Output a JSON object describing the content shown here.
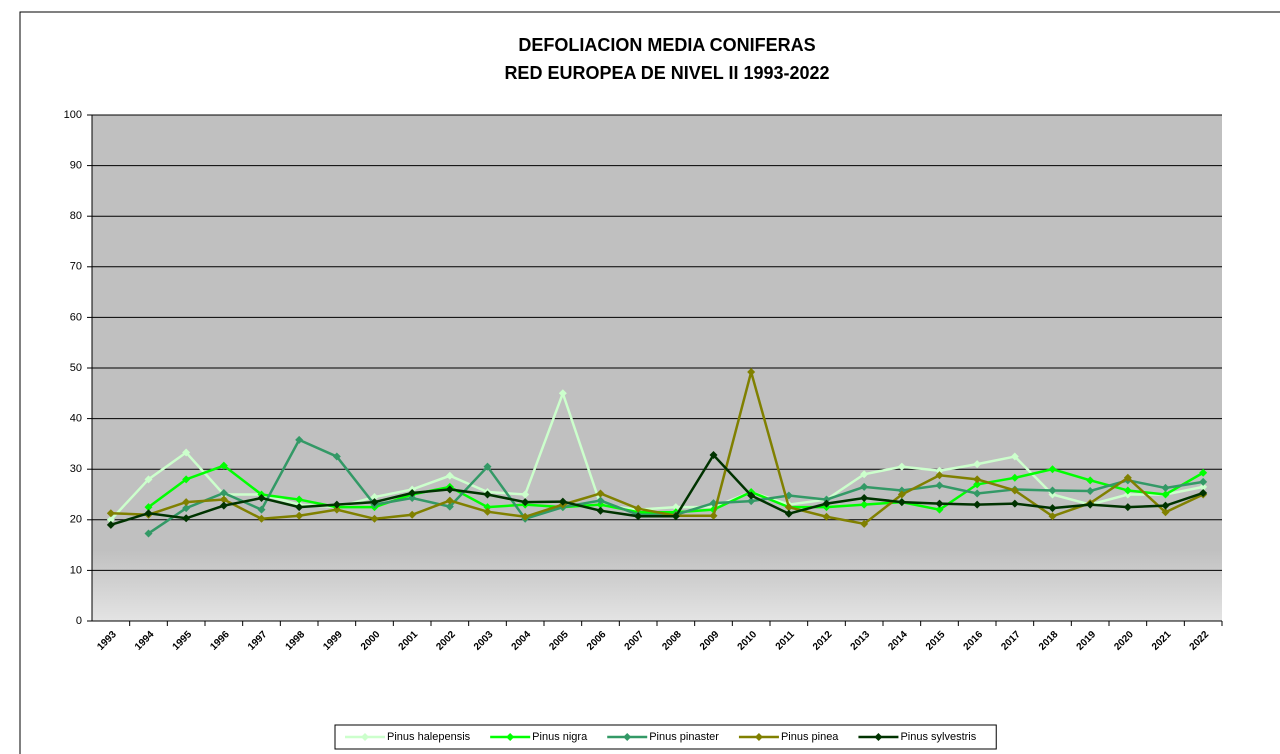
{
  "chart_data": {
    "type": "line",
    "title": [
      "DEFOLIACION MEDIA CONIFERAS",
      "RED EUROPEA DE NIVEL II 1993-2022"
    ],
    "categories": [
      "1993",
      "1994",
      "1995",
      "1996",
      "1997",
      "1998",
      "1999",
      "2000",
      "2001",
      "2002",
      "2003",
      "2004",
      "2005",
      "2006",
      "2007",
      "2008",
      "2009",
      "2010",
      "2011",
      "2012",
      "2013",
      "2014",
      "2015",
      "2016",
      "2017",
      "2018",
      "2019",
      "2020",
      "2021",
      "2022"
    ],
    "ylim": [
      0,
      100
    ],
    "yticks": [
      0,
      10,
      20,
      30,
      40,
      50,
      60,
      70,
      80,
      90,
      100
    ],
    "grid": true,
    "legend": "bottom",
    "series": [
      {
        "name": "Pinus halepensis",
        "color": "#ccffcc",
        "values": [
          20,
          28,
          33.3,
          25,
          25,
          23,
          22.5,
          24.5,
          26,
          28.7,
          25.5,
          25,
          45,
          23,
          22,
          22.5,
          22.5,
          25.5,
          23,
          24,
          29,
          30.5,
          29.7,
          31,
          32.5,
          25,
          23,
          25,
          25,
          26.5
        ]
      },
      {
        "name": "Pinus nigra",
        "color": "#00ff00",
        "values": [
          null,
          22.5,
          28,
          30.7,
          25,
          24,
          22.5,
          22.5,
          25,
          26.5,
          22.5,
          23,
          22.5,
          23,
          21.5,
          21.5,
          22,
          25.5,
          22.5,
          22.5,
          23,
          23.5,
          22,
          27,
          28.3,
          30,
          27.8,
          25.8,
          25,
          29.3
        ]
      },
      {
        "name": "Pinus pinaster",
        "color": "#339966",
        "values": [
          null,
          17.3,
          22.3,
          25.3,
          22,
          35.8,
          32.5,
          23,
          24.3,
          22.6,
          30.5,
          20.2,
          22.5,
          23.8,
          21,
          21,
          23.3,
          23.7,
          24.8,
          24,
          26.5,
          25.8,
          26.8,
          25.2,
          26,
          25.8,
          25.7,
          27.8,
          26.3,
          27.5
        ]
      },
      {
        "name": "Pinus pinea",
        "color": "#808000",
        "values": [
          21.3,
          21,
          23.5,
          24,
          20.2,
          20.8,
          22,
          20.2,
          21,
          23.8,
          21.6,
          20.6,
          23,
          25.2,
          22.2,
          20.8,
          20.8,
          49.2,
          22.5,
          20.6,
          19.2,
          25,
          28.8,
          28,
          25.8,
          20.7,
          23.3,
          28.3,
          21.5,
          25
        ]
      },
      {
        "name": "Pinus sylvestris",
        "color": "#003300",
        "values": [
          19,
          21.3,
          20.3,
          22.8,
          24.3,
          22.5,
          23,
          23.5,
          25.3,
          26,
          25,
          23.5,
          23.6,
          21.8,
          20.7,
          20.7,
          32.8,
          24.8,
          21.2,
          23.2,
          24.3,
          23.5,
          23.2,
          23,
          23.2,
          22.3,
          23,
          22.5,
          22.8,
          25.3
        ]
      }
    ]
  }
}
